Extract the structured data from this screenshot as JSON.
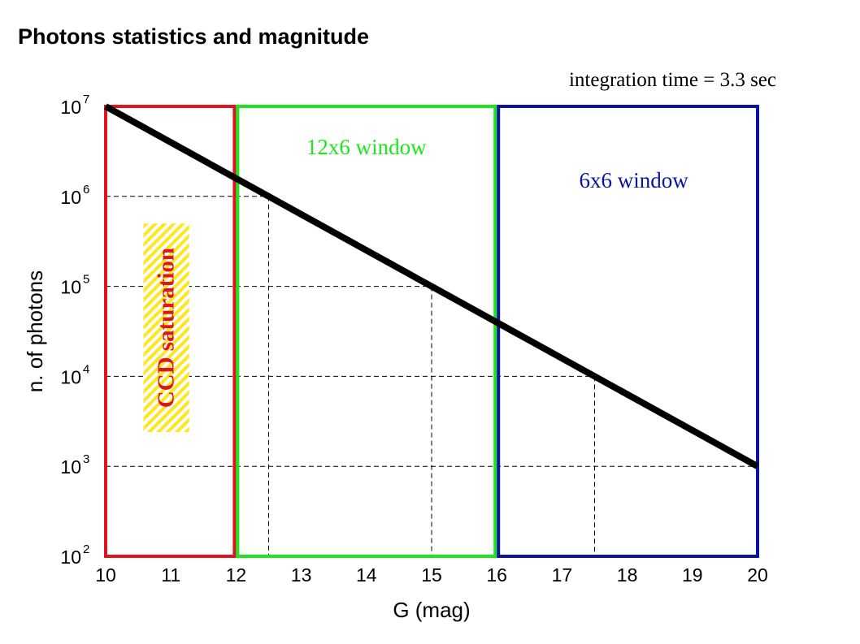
{
  "slide": {
    "title": "Photons statistics and magnitude"
  },
  "chart_data": {
    "type": "line",
    "annotation_top": "integration time = 3.3  sec",
    "xlabel": "G  (mag)",
    "ylabel": "n. of photons",
    "xlim": [
      10,
      20
    ],
    "ylim": [
      100,
      10000000
    ],
    "yscale": "log",
    "grid": false,
    "x_ticks": [
      "10",
      "11",
      "12",
      "13",
      "14",
      "15",
      "16",
      "17",
      "18",
      "19",
      "20"
    ],
    "y_ticks": [
      {
        "base": "10",
        "exp": "2",
        "value": 100
      },
      {
        "base": "10",
        "exp": "3",
        "value": 1000
      },
      {
        "base": "10",
        "exp": "4",
        "value": 10000
      },
      {
        "base": "10",
        "exp": "5",
        "value": 100000
      },
      {
        "base": "10",
        "exp": "6",
        "value": 1000000
      },
      {
        "base": "10",
        "exp": "7",
        "value": 10000000
      }
    ],
    "series": [
      {
        "x": [
          10,
          20
        ],
        "y": [
          10000000,
          1000
        ],
        "color": "#000000"
      }
    ],
    "regions": [
      {
        "label": "",
        "x0": 10,
        "x1": 12,
        "color": "#e0141e"
      },
      {
        "label": "12x6 window",
        "x0": 12,
        "x1": 16,
        "color": "#1ee61e"
      },
      {
        "label": "6x6 window",
        "x0": 16,
        "x1": 20,
        "color": "#0a14a0"
      }
    ],
    "saturation_label": "CCD saturation",
    "saturation_label_color": "#e0141e",
    "saturation_band_color": "#ffe61e",
    "reference_lines": [
      {
        "x": 12.5,
        "y": 1000000
      },
      {
        "x": 15,
        "y": 100000
      },
      {
        "x": 17.5,
        "y": 10000
      },
      {
        "x": 20,
        "y": 1000
      }
    ]
  }
}
